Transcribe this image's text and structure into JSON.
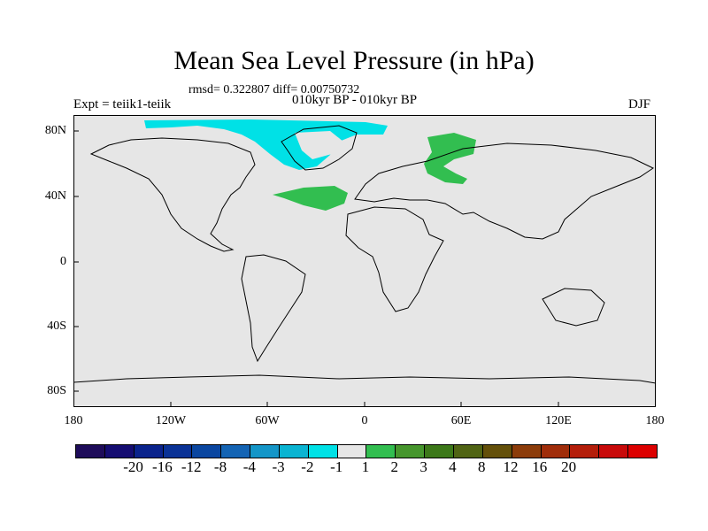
{
  "title": "Mean Sea Level Pressure (in hPa)",
  "stats": "rmsd= 0.322807 diff= 0.00750732",
  "experiment": "Expt = teiik1-teiik",
  "period": "010kyr BP - 010kyr BP",
  "season": "DJF",
  "map": {
    "background_color": "#e6e6e6",
    "lat_labels": [
      "80N",
      "40N",
      "0",
      "40S",
      "80S"
    ],
    "lon_labels": [
      "180",
      "120W",
      "60W",
      "0",
      "60E",
      "120E",
      "180"
    ]
  },
  "legend": {
    "colors": [
      "#1e0c5a",
      "#150d72",
      "#0a238c",
      "#0a3296",
      "#0a46a0",
      "#1464b4",
      "#1496c8",
      "#0ab4d2",
      "#00e1e6",
      "#e6e6e6",
      "#32be50",
      "#46962d",
      "#3c7819",
      "#506414",
      "#64500a",
      "#8c3c0a",
      "#a02d0a",
      "#b41e0a",
      "#c80a0a",
      "#dc0000"
    ],
    "labels": [
      "-20",
      "-16",
      "-12",
      "-8",
      "-4",
      "-3",
      "-2",
      "-1",
      "1",
      "2",
      "3",
      "4",
      "8",
      "12",
      "16",
      "20"
    ]
  }
}
